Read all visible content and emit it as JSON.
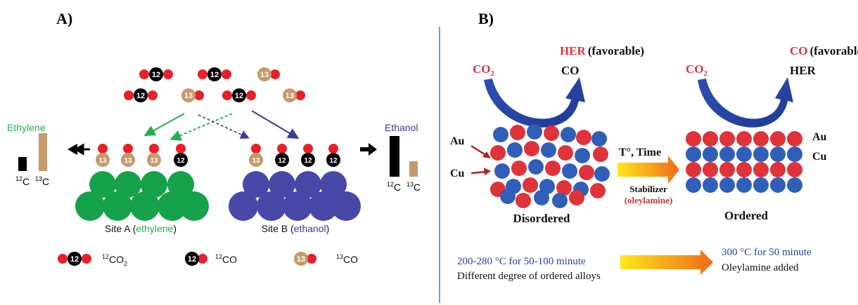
{
  "panel_a": {
    "label": "A)",
    "legend_left": {
      "title": "Ethylene",
      "c12": "12C",
      "c13": "13C",
      "c12_sup": "12",
      "c13_sup": "13",
      "c_letter": "C"
    },
    "legend_right": {
      "title": "Ethanol",
      "c12_sup": "12",
      "c13_sup": "13",
      "c_letter": "C"
    },
    "site_a": {
      "prefix": "Site A (",
      "name": "ethylene",
      "suffix": ")"
    },
    "site_b": {
      "prefix": "Site B (",
      "name": "ethanol",
      "suffix": ")"
    },
    "atom_12": "12",
    "atom_13": "13",
    "key": {
      "co2_sup": "12",
      "co2_text": "CO",
      "co2_sub": "2",
      "co12_sup": "12",
      "co12_text": "CO",
      "co13_sup": "13",
      "co13_text": "CO"
    }
  },
  "panel_b": {
    "label": "B)",
    "left": {
      "co2": "CO",
      "co2_sub": "2",
      "her_word": "HER",
      "her_note": "(favorable)",
      "co": "CO",
      "au": "Au",
      "cu": "Cu",
      "caption": "Disordered"
    },
    "right": {
      "co2": "CO",
      "co2_sub": "2",
      "co_word": "CO",
      "co_note": "(favorable)",
      "her": "HER",
      "au": "Au",
      "cu": "Cu",
      "caption": "Ordered"
    },
    "middle": {
      "temp_time": "T°, Time",
      "stabilizer": "Stabilizer",
      "oleylamine": "(oleylamine)"
    },
    "bottom_left": {
      "line1": "200-280 °C for 50-100 minute",
      "line2": "Different degree of ordered alloys"
    },
    "bottom_right": {
      "line1": "300 °C for 50 minute",
      "line2": "Oleylamine added"
    }
  },
  "colors": {
    "green": "#16a24a",
    "blue_purple": "#4848a8",
    "red": "#e8202a",
    "tan": "#c49a6c",
    "au_red": "#e0323a",
    "cu_blue": "#2f5fb8",
    "text_blue": "#2b3f9e",
    "divider": "#3a7fd0"
  }
}
